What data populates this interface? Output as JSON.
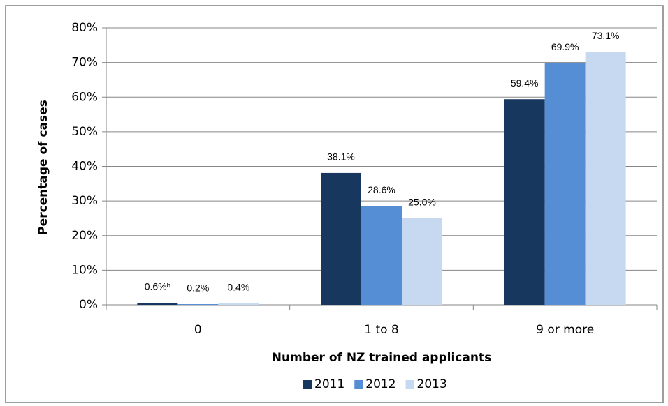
{
  "chart_data": {
    "type": "bar",
    "categories": [
      "0",
      "1 to 8",
      "9 or more"
    ],
    "series": [
      {
        "name": "2011",
        "color": "#17375e",
        "values": [
          0.6,
          38.1,
          59.4
        ],
        "value_labels": [
          "0.6%ᵇ",
          "38.1%",
          "59.4%"
        ]
      },
      {
        "name": "2012",
        "color": "#558ed5",
        "values": [
          0.2,
          28.6,
          69.9
        ],
        "value_labels": [
          "0.2%",
          "28.6%",
          "69.9%"
        ]
      },
      {
        "name": "2013",
        "color": "#c6d9f1",
        "values": [
          0.4,
          25.0,
          73.1
        ],
        "value_labels": [
          "0.4%",
          "25.0%",
          "73.1%"
        ]
      }
    ],
    "ylim": [
      0,
      80
    ],
    "yticks": [
      {
        "value": 0,
        "label": "0%"
      },
      {
        "value": 10,
        "label": "10%"
      },
      {
        "value": 20,
        "label": "20%"
      },
      {
        "value": 30,
        "label": "30%"
      },
      {
        "value": 40,
        "label": "40%"
      },
      {
        "value": 50,
        "label": "50%"
      },
      {
        "value": 60,
        "label": "60%"
      },
      {
        "value": 70,
        "label": "70%"
      },
      {
        "value": 80,
        "label": "80%"
      }
    ],
    "ylabel": "Percentage of cases",
    "xlabel": "Number of NZ trained applicants",
    "grid": true,
    "legend": "bottom"
  }
}
